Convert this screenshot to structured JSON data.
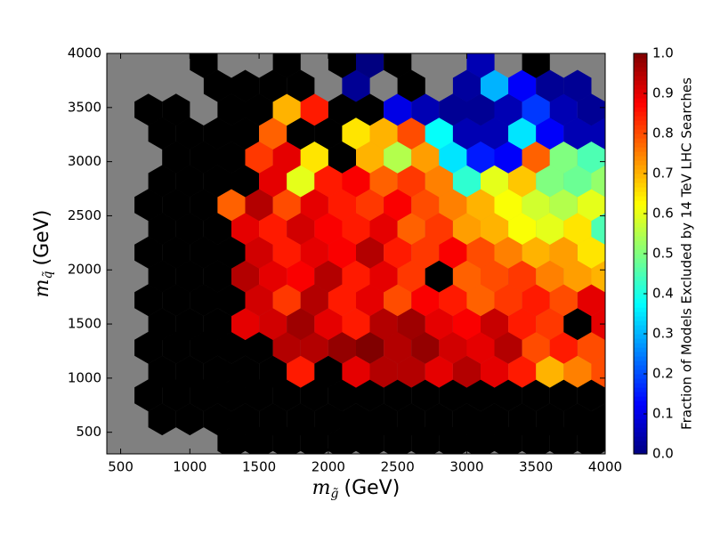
{
  "chart_data": {
    "type": "hexbin",
    "xlabel": {
      "symbol": "m",
      "sub": "g̃",
      "unit": "(GeV)"
    },
    "ylabel": {
      "symbol": "m",
      "sub": "q̃",
      "unit": "(GeV)"
    },
    "colorbar_label": "Fraction of Models Excluded by 14 TeV LHC Searches",
    "background": "#808080",
    "empty_color": "#000000",
    "colormap": "jet",
    "xlim": [
      400,
      4000
    ],
    "ylim": [
      300,
      4000
    ],
    "xticks": [
      500,
      1000,
      1500,
      2000,
      2500,
      3000,
      3500,
      4000
    ],
    "yticks": [
      500,
      1000,
      1500,
      2000,
      2500,
      3000,
      3500,
      4000
    ],
    "clim": [
      0,
      1
    ],
    "cticks": [
      {
        "value": 0,
        "label": "0.0"
      },
      0.1,
      0.2,
      0.3,
      0.4,
      0.5,
      0.6,
      0.7,
      0.8,
      0.9,
      {
        "value": 1,
        "label": "1.0"
      }
    ],
    "rows": [
      {
        "y": 400,
        "x": [
          1300,
          1500,
          1700,
          1900,
          2100,
          2300,
          2500,
          2700,
          2900,
          3100,
          3300,
          3500,
          3700,
          3900
        ],
        "values": [
          null,
          null,
          null,
          null,
          null,
          null,
          null,
          null,
          null,
          null,
          null,
          null,
          null,
          null
        ]
      },
      {
        "y": 620,
        "x": [
          800,
          1000,
          1200,
          1400,
          1600,
          1800,
          2000,
          2200,
          2400,
          2600,
          2800,
          3000,
          3200,
          3400,
          3600,
          3800,
          4000
        ],
        "values": [
          null,
          null,
          null,
          null,
          null,
          null,
          null,
          null,
          null,
          null,
          null,
          null,
          null,
          null,
          null,
          null,
          null
        ]
      },
      {
        "y": 840,
        "x": [
          700,
          900,
          1100,
          1300,
          1500,
          1700,
          1900,
          2100,
          2300,
          2500,
          2700,
          2900,
          3100,
          3300,
          3500,
          3700,
          3900
        ],
        "values": [
          null,
          null,
          null,
          null,
          null,
          null,
          null,
          null,
          null,
          null,
          null,
          null,
          null,
          null,
          null,
          null,
          null
        ]
      },
      {
        "y": 1060,
        "x": [
          800,
          1000,
          1200,
          1400,
          1600,
          1800,
          2000,
          2200,
          2400,
          2600,
          2800,
          3000,
          3200,
          3400,
          3600,
          3800,
          4000
        ],
        "values": [
          null,
          null,
          null,
          null,
          null,
          0.85,
          null,
          0.9,
          0.95,
          0.95,
          0.9,
          0.95,
          0.9,
          0.85,
          0.7,
          0.75,
          0.8
        ]
      },
      {
        "y": 1280,
        "x": [
          700,
          900,
          1100,
          1300,
          1500,
          1700,
          1900,
          2100,
          2300,
          2500,
          2700,
          2900,
          3100,
          3300,
          3500,
          3700,
          3900
        ],
        "values": [
          null,
          null,
          null,
          null,
          null,
          0.95,
          0.95,
          0.98,
          1.0,
          0.95,
          0.98,
          0.92,
          0.9,
          0.95,
          0.8,
          0.85,
          0.8
        ]
      },
      {
        "y": 1500,
        "x": [
          800,
          1000,
          1200,
          1400,
          1600,
          1800,
          2000,
          2200,
          2400,
          2600,
          2800,
          3000,
          3200,
          3400,
          3600,
          3800,
          4000
        ],
        "values": [
          null,
          null,
          null,
          0.9,
          0.92,
          0.97,
          0.9,
          0.85,
          0.95,
          0.97,
          0.9,
          0.88,
          0.93,
          0.85,
          0.82,
          null,
          0.9
        ]
      },
      {
        "y": 1720,
        "x": [
          700,
          900,
          1100,
          1300,
          1500,
          1700,
          1900,
          2100,
          2300,
          2500,
          2700,
          2900,
          3100,
          3300,
          3500,
          3700,
          3900
        ],
        "values": [
          null,
          null,
          null,
          null,
          0.92,
          0.82,
          0.95,
          0.85,
          0.9,
          0.8,
          0.88,
          0.85,
          0.78,
          0.82,
          0.85,
          0.8,
          0.9
        ]
      },
      {
        "y": 1940,
        "x": [
          800,
          1000,
          1200,
          1400,
          1600,
          1800,
          2000,
          2200,
          2400,
          2600,
          2800,
          3000,
          3200,
          3400,
          3600,
          3800,
          4000
        ],
        "values": [
          null,
          null,
          null,
          0.95,
          0.9,
          0.88,
          0.95,
          0.85,
          0.9,
          0.82,
          null,
          0.78,
          0.8,
          0.82,
          0.75,
          0.72,
          0.7
        ]
      },
      {
        "y": 2160,
        "x": [
          700,
          900,
          1100,
          1300,
          1500,
          1700,
          1900,
          2100,
          2300,
          2500,
          2700,
          2900,
          3100,
          3300,
          3500,
          3700,
          3900
        ],
        "values": [
          null,
          null,
          null,
          null,
          0.92,
          0.85,
          0.9,
          0.88,
          0.95,
          0.85,
          0.82,
          0.88,
          0.8,
          0.75,
          0.7,
          0.72,
          0.65
        ]
      },
      {
        "y": 2380,
        "x": [
          800,
          1000,
          1200,
          1400,
          1600,
          1800,
          2000,
          2200,
          2400,
          2600,
          2800,
          3000,
          3200,
          3400,
          3600,
          3800,
          4000
        ],
        "values": [
          null,
          null,
          null,
          0.9,
          0.85,
          0.92,
          0.88,
          0.85,
          0.9,
          0.78,
          0.82,
          0.72,
          0.7,
          0.62,
          0.6,
          0.65,
          0.45
        ]
      },
      {
        "y": 2600,
        "x": [
          700,
          900,
          1100,
          1300,
          1500,
          1700,
          1900,
          2100,
          2300,
          2500,
          2700,
          2900,
          3100,
          3300,
          3500,
          3700,
          3900
        ],
        "values": [
          null,
          null,
          null,
          0.78,
          0.95,
          0.8,
          0.9,
          0.85,
          0.82,
          0.88,
          0.8,
          0.75,
          0.7,
          0.62,
          0.58,
          0.55,
          0.6
        ]
      },
      {
        "y": 2820,
        "x": [
          800,
          1000,
          1200,
          1400,
          1600,
          1800,
          2000,
          2200,
          2400,
          2600,
          2800,
          3000,
          3200,
          3400,
          3600,
          3800,
          4000
        ],
        "values": [
          null,
          null,
          null,
          null,
          0.9,
          0.6,
          0.85,
          0.88,
          0.78,
          0.82,
          0.75,
          0.42,
          0.6,
          0.68,
          0.5,
          0.48,
          0.52
        ]
      },
      {
        "y": 3040,
        "x": [
          900,
          1100,
          1300,
          1500,
          1700,
          1900,
          2100,
          2300,
          2500,
          2700,
          2900,
          3100,
          3300,
          3500,
          3700,
          3900
        ],
        "values": [
          null,
          null,
          null,
          0.82,
          0.9,
          0.65,
          null,
          0.7,
          0.55,
          0.72,
          0.35,
          0.15,
          0.12,
          0.78,
          0.5,
          0.45
        ]
      },
      {
        "y": 3260,
        "x": [
          800,
          1000,
          1200,
          1400,
          1600,
          1800,
          2000,
          2200,
          2400,
          2600,
          2800,
          3000,
          3200,
          3400,
          3600,
          3800,
          4000
        ],
        "values": [
          null,
          null,
          null,
          null,
          0.78,
          null,
          null,
          0.65,
          0.7,
          0.8,
          0.38,
          0.05,
          0.05,
          0.35,
          0.12,
          0.05,
          0.05
        ]
      },
      {
        "y": 3480,
        "x": [
          700,
          900,
          1300,
          1500,
          1700,
          1900,
          2100,
          2300,
          2500,
          2700,
          2900,
          3100,
          3300,
          3500,
          3700,
          3900
        ],
        "values": [
          null,
          null,
          null,
          null,
          0.7,
          0.85,
          null,
          null,
          0.1,
          0.05,
          0.02,
          0.02,
          0.05,
          0.18,
          0.05,
          0.02
        ]
      },
      {
        "y": 3700,
        "x": [
          1200,
          1400,
          1600,
          1800,
          2200,
          2600,
          3000,
          3200,
          3400,
          3600,
          3800
        ],
        "values": [
          null,
          null,
          null,
          null,
          0.02,
          null,
          0.03,
          0.3,
          0.12,
          0.02,
          0.02
        ]
      },
      {
        "y": 3920,
        "x": [
          1100,
          1700,
          2100,
          2300,
          2500,
          3100,
          3500
        ],
        "values": [
          null,
          null,
          null,
          0.0,
          null,
          0.05,
          null
        ]
      }
    ]
  }
}
